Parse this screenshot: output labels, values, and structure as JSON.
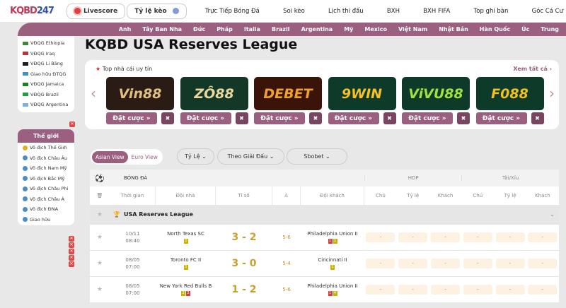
{
  "header": {
    "logo": "KQBD247",
    "livescore": "Livescore",
    "odds": "Tỷ lệ kèo",
    "menu": [
      "Trực Tiếp Bóng Đá",
      "Soi kèo",
      "Lịch thi đấu",
      "BXH",
      "BXH FIFA",
      "Top ghi bàn",
      "Góc Cá Cư"
    ]
  },
  "nav": [
    "Anh",
    "Tây Ban Nha",
    "Đức",
    "Pháp",
    "Italia",
    "Brazil",
    "Argentina",
    "Mỹ",
    "Mexico",
    "Việt Nam",
    "Nhật Bản",
    "Hàn Quốc",
    "Úc",
    "Trung"
  ],
  "sidebar": {
    "leagues": [
      "VĐQG Ethiopia",
      "VĐQG Iraq",
      "VĐQG Li Băng",
      "Giao hữu ĐTQG",
      "VĐQG Jamaica",
      "VĐQG Brazil",
      "VĐQG Argentina"
    ],
    "world_title": "Thế giới",
    "world": [
      "Vô địch Thế Giới",
      "Vô địch Châu Âu",
      "Vô địch Nam Mỹ",
      "Vô địch Bắc Mỹ",
      "Vô địch Châu Phi",
      "Vô địch Châu Á",
      "Vô địch ĐNA",
      "Giao hữu"
    ]
  },
  "page_title": "KQBD USA Reserves League",
  "bookmakers": {
    "heading": "Top nhà cái uy tín",
    "see_all": "Xem tất cả",
    "bet_label": "Đặt cược »",
    "items": [
      "Vin88",
      "ZÔ88",
      "DEBET",
      "9WIN",
      "ViVU88",
      "F088"
    ]
  },
  "filters": {
    "asian": "Asian View",
    "euro": "Euro View",
    "odds": "Tỷ Lệ",
    "by_league": "Theo Giải Đấu",
    "bookie": "Sbobet"
  },
  "table": {
    "sport": "BÓNG ĐÁ",
    "hdp": "HDP",
    "ou": "Tài/Xỉu",
    "cols": [
      "Thời gian",
      "Đội nhà",
      "Tỉ số",
      "Đội khách",
      "Chủ",
      "Tỷ lệ",
      "Khách",
      "Chủ",
      "Tỷ lệ",
      "Khách"
    ],
    "league": "USA Reserves League",
    "matches": [
      {
        "date": "10/11",
        "time": "08:40",
        "home": "North Texas SC",
        "home_cards": [
          {
            "c": "y",
            "n": "3"
          }
        ],
        "score": "3 - 2",
        "ht": "5-6",
        "away": "Philadelphia Union II",
        "away_cards": [
          {
            "c": "rd",
            "n": "1"
          },
          {
            "c": "y",
            "n": "1"
          }
        ],
        "odds": [
          "-",
          "-",
          "-",
          "-",
          "-",
          "-"
        ]
      },
      {
        "date": "08/05",
        "time": "07:00",
        "home": "Toronto FC II",
        "home_cards": [
          {
            "c": "y",
            "n": "3"
          }
        ],
        "score": "3 - 0",
        "ht": "5-4",
        "away": "Cincinnati II",
        "away_cards": [
          {
            "c": "y",
            "n": "1"
          }
        ],
        "odds": [
          "-",
          "-",
          "-",
          "-",
          "-",
          "-"
        ]
      },
      {
        "date": "08/05",
        "time": "07:00",
        "home": "New York Red Bulls B",
        "home_cards": [
          {
            "c": "y",
            "n": "2"
          },
          {
            "c": "rd",
            "n": "2"
          }
        ],
        "score": "1 - 2",
        "ht": "5-6",
        "away": "Philadelphia Union II",
        "away_cards": [
          {
            "c": "rd",
            "n": "1"
          },
          {
            "c": "y",
            "n": "4"
          }
        ],
        "odds": [
          "-",
          "-",
          "-",
          "-",
          "-",
          "-"
        ]
      }
    ]
  },
  "colors": {
    "accent": "#9b5f80",
    "score": "#c8a030"
  }
}
